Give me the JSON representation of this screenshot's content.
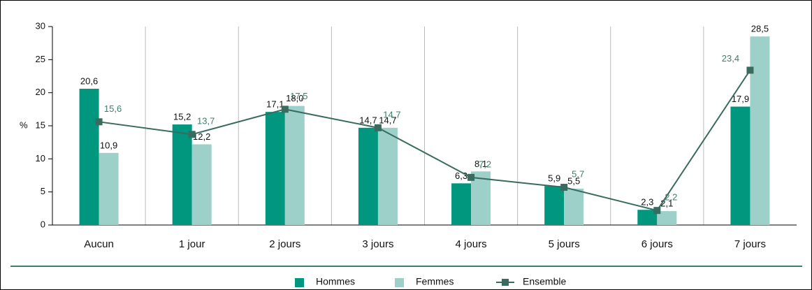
{
  "chart_data": {
    "type": "bar",
    "y_label": "%",
    "categories": [
      "Aucun",
      "1 jour",
      "2 jours",
      "3 jours",
      "4 jours",
      "5 jours",
      "6 jours",
      "7 jours"
    ],
    "series": [
      {
        "name": "Hommes",
        "type": "bar",
        "color": "#00977f",
        "values": [
          20.6,
          15.2,
          17.1,
          14.7,
          6.3,
          5.9,
          2.3,
          17.9
        ],
        "value_labels": [
          "20,6",
          "15,2",
          "17,1",
          "14,7",
          "6,3",
          "5,9",
          "2,3",
          "17,9"
        ]
      },
      {
        "name": "Femmes",
        "type": "bar",
        "color": "#9dd0c9",
        "values": [
          10.9,
          12.2,
          18.0,
          14.7,
          8.1,
          5.5,
          2.1,
          28.5
        ],
        "value_labels": [
          "10,9",
          "12,2",
          "18,0",
          "14,7",
          "8,1",
          "5,5",
          "2,1",
          "28,5"
        ]
      },
      {
        "name": "Ensemble",
        "type": "line",
        "color": "#3a6b5f",
        "label_color": "#3f7d6c",
        "values": [
          15.6,
          13.7,
          17.5,
          14.7,
          7.2,
          5.7,
          2.2,
          23.4
        ],
        "value_labels": [
          "15,6",
          "13,7",
          "17,5",
          "14,7",
          "7,2",
          "5,7",
          "2,2",
          "23,4"
        ]
      }
    ],
    "ylim": [
      0,
      30
    ],
    "yticks": [
      0,
      5,
      10,
      15,
      20,
      25,
      30
    ],
    "grid": true
  }
}
